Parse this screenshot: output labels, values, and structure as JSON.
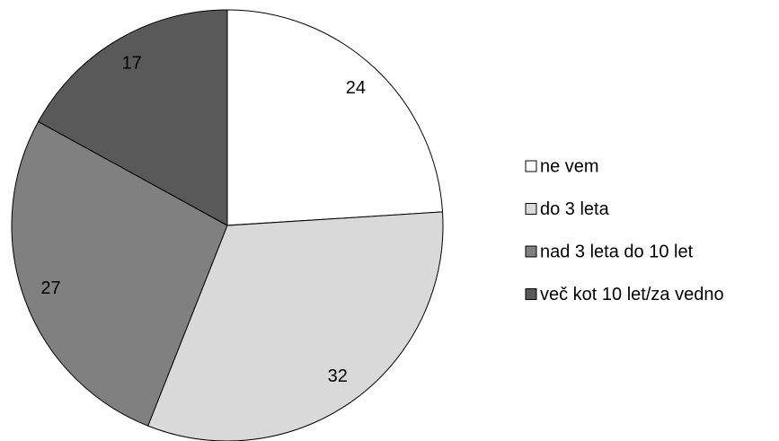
{
  "chart_data": {
    "type": "pie",
    "categories": [
      "ne vem",
      "do 3 leta",
      "nad 3 leta do 10 let",
      "več kot 10 let/za vedno"
    ],
    "values": [
      24,
      32,
      27,
      17
    ],
    "colors": [
      "#ffffff",
      "#d9d9d9",
      "#808080",
      "#595959"
    ],
    "legend": "right"
  }
}
